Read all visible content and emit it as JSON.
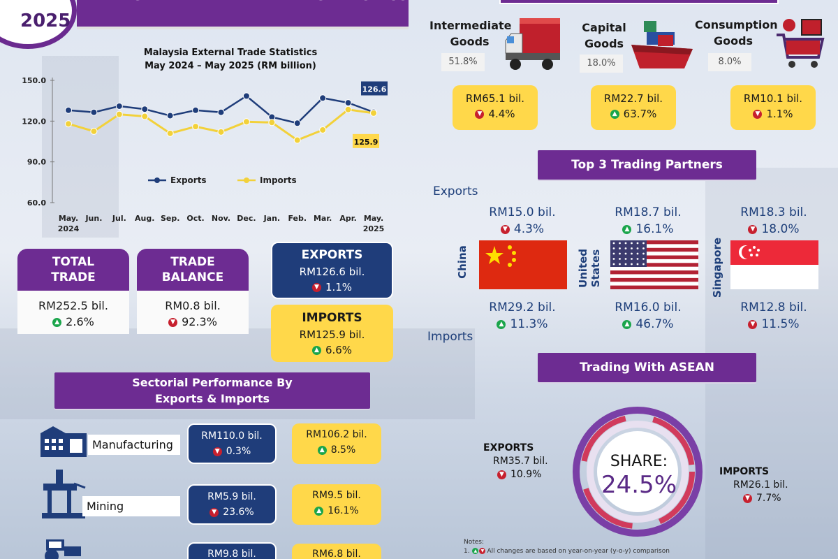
{
  "header": {
    "year": "2025",
    "title": "MALAYSIA EXTERNAL TRADE STATISTICS"
  },
  "chart_data": {
    "type": "line",
    "title": "Malaysia External Trade Statistics",
    "subtitle": "May 2024 – May 2025 (RM billion)",
    "categories": [
      "May.\n2024",
      "Jun.",
      "Jul.",
      "Aug.",
      "Sep.",
      "Oct.",
      "Nov.",
      "Dec.",
      "Jan.",
      "Feb.",
      "Mar.",
      "Apr.",
      "May.\n2025"
    ],
    "series": [
      {
        "name": "Exports",
        "color": "#1f3d7a",
        "values": [
          128.0,
          126.5,
          131.0,
          128.8,
          124.0,
          128.0,
          126.5,
          138.5,
          123.0,
          118.5,
          137.0,
          133.5,
          126.6
        ]
      },
      {
        "name": "Imports",
        "color": "#f2d13a",
        "values": [
          118.0,
          112.5,
          125.0,
          123.5,
          111.0,
          116.0,
          112.0,
          119.5,
          119.0,
          106.0,
          113.5,
          128.5,
          125.9
        ]
      }
    ],
    "yticks": [
      "150.0",
      "120.0",
      "90.0",
      "60.0"
    ],
    "ylim": [
      60,
      150
    ],
    "end_labels": {
      "exports": "126.6",
      "imports": "125.9"
    },
    "legend_position": "center"
  },
  "summary": {
    "total_trade": {
      "label_1": "TOTAL",
      "label_2": "TRADE",
      "value": "RM252.5 bil.",
      "change": "2.6%",
      "direction": "up"
    },
    "trade_balance": {
      "label_1": "TRADE",
      "label_2": "BALANCE",
      "value": "RM0.8 bil.",
      "change": "92.3%",
      "direction": "down"
    },
    "exports": {
      "label": "EXPORTS",
      "value": "RM126.6 bil.",
      "change": "1.1%",
      "direction": "down"
    },
    "imports": {
      "label": "IMPORTS",
      "value": "RM125.9 bil.",
      "change": "6.6%",
      "direction": "up"
    }
  },
  "sectorial": {
    "title_1": "Sectorial Performance By",
    "title_2": "Exports & Imports",
    "rows": [
      {
        "name": "Manufacturing",
        "exp_value": "RM110.0 bil.",
        "exp_change": "0.3%",
        "exp_dir": "down",
        "imp_value": "RM106.2 bil.",
        "imp_change": "8.5%",
        "imp_dir": "up"
      },
      {
        "name": "Mining",
        "exp_value": "RM5.9 bil.",
        "exp_change": "23.6%",
        "exp_dir": "down",
        "imp_value": "RM9.5 bil.",
        "imp_change": "16.1%",
        "imp_dir": "up"
      },
      {
        "name": "",
        "exp_value": "RM9.8 bil.",
        "exp_change": "",
        "exp_dir": "",
        "imp_value": "RM6.8 bil.",
        "imp_change": "",
        "imp_dir": ""
      }
    ]
  },
  "goods": [
    {
      "title_1": "Intermediate",
      "title_2": "Goods",
      "share": "51.8%",
      "value": "RM65.1 bil.",
      "change": "4.4%",
      "direction": "down"
    },
    {
      "title_1": "Capital",
      "title_2": "Goods",
      "share": "18.0%",
      "value": "RM22.7 bil.",
      "change": "63.7%",
      "direction": "up"
    },
    {
      "title_1": "Consumption",
      "title_2": "Goods",
      "share": "8.0%",
      "value": "RM10.1 bil.",
      "change": "1.1%",
      "direction": "down"
    }
  ],
  "partners": {
    "title": "Top 3 Trading Partners",
    "exports_label": "Exports",
    "imports_label": "Imports",
    "list": [
      {
        "country": "China",
        "exp_value": "RM15.0 bil.",
        "exp_change": "4.3%",
        "exp_dir": "down",
        "imp_value": "RM29.2 bil.",
        "imp_change": "11.3%",
        "imp_dir": "up"
      },
      {
        "country_1": "United",
        "country_2": "States",
        "exp_value": "RM18.7 bil.",
        "exp_change": "16.1%",
        "exp_dir": "up",
        "imp_value": "RM16.0 bil.",
        "imp_change": "46.7%",
        "imp_dir": "up"
      },
      {
        "country": "Singapore",
        "exp_value": "RM18.3 bil.",
        "exp_change": "18.0%",
        "exp_dir": "down",
        "imp_value": "RM12.8 bil.",
        "imp_change": "11.5%",
        "imp_dir": "down"
      }
    ]
  },
  "asean": {
    "title": "Trading With ASEAN",
    "share_label": "SHARE:",
    "share_value": "24.5%",
    "exports_label": "EXPORTS",
    "exports_value": "RM35.7 bil.",
    "exports_change": "10.9%",
    "imports_label": "IMPORTS",
    "imports_value": "RM26.1 bil.",
    "imports_change": "7.7%"
  },
  "notes": {
    "title": "Notes:",
    "line1": "All changes are based on year-on-year (y-o-y) comparison",
    "line1_prefix": "1."
  },
  "colors": {
    "purple": "#6d2c92",
    "navy": "#1f3d7a",
    "yellow": "#ffd84a",
    "up": "#1aa54b",
    "down": "#c7202e"
  }
}
